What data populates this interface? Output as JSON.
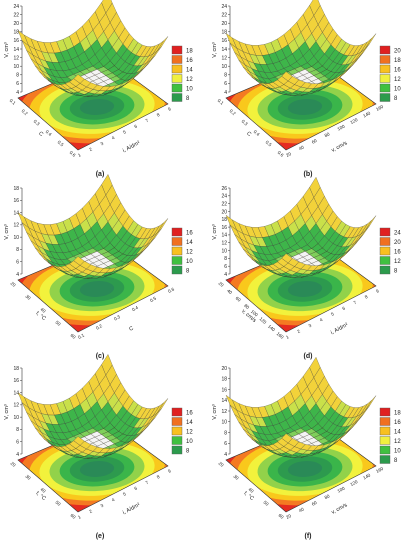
{
  "figure": {
    "type": "response-surface-grid",
    "panel_count": 6
  },
  "chart_data": [
    {
      "type": "surface",
      "label": "(a)",
      "zlabel": "V, cm³",
      "xlabel": "i, A/dm²",
      "ylabel": "C",
      "z_ticks": [
        "4",
        "6",
        "8",
        "10",
        "12",
        "14",
        "16",
        "18",
        "20",
        "22",
        "24"
      ],
      "x_ticks": [
        "1",
        "2",
        "3",
        "4",
        "5",
        "6",
        "7",
        "8",
        "9"
      ],
      "y_ticks": [
        "0.1",
        "0.2",
        "0.3",
        "0.4",
        "0.5",
        "0.6"
      ],
      "legend": [
        {
          "value": "18",
          "color": "#e02020"
        },
        {
          "value": "16",
          "color": "#f07020"
        },
        {
          "value": "14",
          "color": "#f8c020"
        },
        {
          "value": "12",
          "color": "#f0f040"
        },
        {
          "value": "10",
          "color": "#40c040"
        },
        {
          "value": "8",
          "color": "#2c9b4c"
        }
      ]
    },
    {
      "type": "surface",
      "label": "(b)",
      "zlabel": "V, cm³",
      "xlabel": "v, cm/s",
      "ylabel": "C",
      "z_ticks": [
        "4",
        "6",
        "8",
        "10",
        "12",
        "14",
        "16",
        "18",
        "20",
        "22",
        "24"
      ],
      "x_ticks": [
        "20",
        "40",
        "60",
        "80",
        "100",
        "120",
        "140",
        "160"
      ],
      "y_ticks": [
        "0.1",
        "0.2",
        "0.3",
        "0.4",
        "0.5",
        "0.6"
      ],
      "legend": [
        {
          "value": "20",
          "color": "#e02020"
        },
        {
          "value": "18",
          "color": "#f07020"
        },
        {
          "value": "16",
          "color": "#f8c020"
        },
        {
          "value": "12",
          "color": "#f0f040"
        },
        {
          "value": "10",
          "color": "#40c040"
        },
        {
          "value": "8",
          "color": "#2c9b4c"
        }
      ]
    },
    {
      "type": "surface",
      "label": "(c)",
      "zlabel": "V, cm³",
      "xlabel": "C",
      "ylabel": "t, °C",
      "z_ticks": [
        "4",
        "6",
        "8",
        "10",
        "12",
        "14",
        "16",
        "18"
      ],
      "x_ticks": [
        "0.1",
        "0.2",
        "0.3",
        "0.4",
        "0.5",
        "0.6"
      ],
      "y_ticks": [
        "20",
        "30",
        "40",
        "50",
        "60"
      ],
      "legend": [
        {
          "value": "16",
          "color": "#e02020"
        },
        {
          "value": "14",
          "color": "#f07020"
        },
        {
          "value": "12",
          "color": "#f8c020"
        },
        {
          "value": "10",
          "color": "#40c040"
        },
        {
          "value": "8",
          "color": "#2c9b4c"
        }
      ]
    },
    {
      "type": "surface",
      "label": "(d)",
      "zlabel": "V, cm³",
      "xlabel": "i, A/dm²",
      "ylabel": "v, cm/s",
      "z_ticks": [
        "4",
        "6",
        "8",
        "10",
        "12",
        "14",
        "16",
        "18",
        "20",
        "22",
        "24",
        "26"
      ],
      "x_ticks": [
        "1",
        "2",
        "3",
        "4",
        "5",
        "6",
        "7",
        "8",
        "9"
      ],
      "y_ticks": [
        "20",
        "40",
        "60",
        "80",
        "100",
        "120",
        "140",
        "160"
      ],
      "legend": [
        {
          "value": "24",
          "color": "#e02020"
        },
        {
          "value": "20",
          "color": "#f07020"
        },
        {
          "value": "16",
          "color": "#f8c020"
        },
        {
          "value": "12",
          "color": "#40c040"
        },
        {
          "value": "8",
          "color": "#2c9b4c"
        }
      ]
    },
    {
      "type": "surface",
      "label": "(e)",
      "zlabel": "V, cm³",
      "xlabel": "i, A/dm²",
      "ylabel": "t, °C",
      "z_ticks": [
        "4",
        "6",
        "8",
        "10",
        "12",
        "14",
        "16",
        "18"
      ],
      "x_ticks": [
        "1",
        "2",
        "3",
        "4",
        "5",
        "6",
        "7",
        "8",
        "9"
      ],
      "y_ticks": [
        "20",
        "30",
        "40",
        "50",
        "60"
      ],
      "legend": [
        {
          "value": "16",
          "color": "#e02020"
        },
        {
          "value": "14",
          "color": "#f07020"
        },
        {
          "value": "12",
          "color": "#f8c020"
        },
        {
          "value": "10",
          "color": "#40c040"
        },
        {
          "value": "8",
          "color": "#2c9b4c"
        }
      ]
    },
    {
      "type": "surface",
      "label": "(f)",
      "zlabel": "V, cm³",
      "xlabel": "v, cm/s",
      "ylabel": "t, °C",
      "z_ticks": [
        "4",
        "6",
        "8",
        "10",
        "12",
        "14",
        "16",
        "18",
        "20"
      ],
      "x_ticks": [
        "20",
        "40",
        "60",
        "80",
        "100",
        "120",
        "140",
        "160"
      ],
      "y_ticks": [
        "20",
        "30",
        "40",
        "50",
        "60"
      ],
      "legend": [
        {
          "value": "18",
          "color": "#e02020"
        },
        {
          "value": "16",
          "color": "#f07020"
        },
        {
          "value": "14",
          "color": "#f8c020"
        },
        {
          "value": "12",
          "color": "#f0f040"
        },
        {
          "value": "10",
          "color": "#40c040"
        },
        {
          "value": "8",
          "color": "#2c9b4c"
        }
      ]
    }
  ]
}
